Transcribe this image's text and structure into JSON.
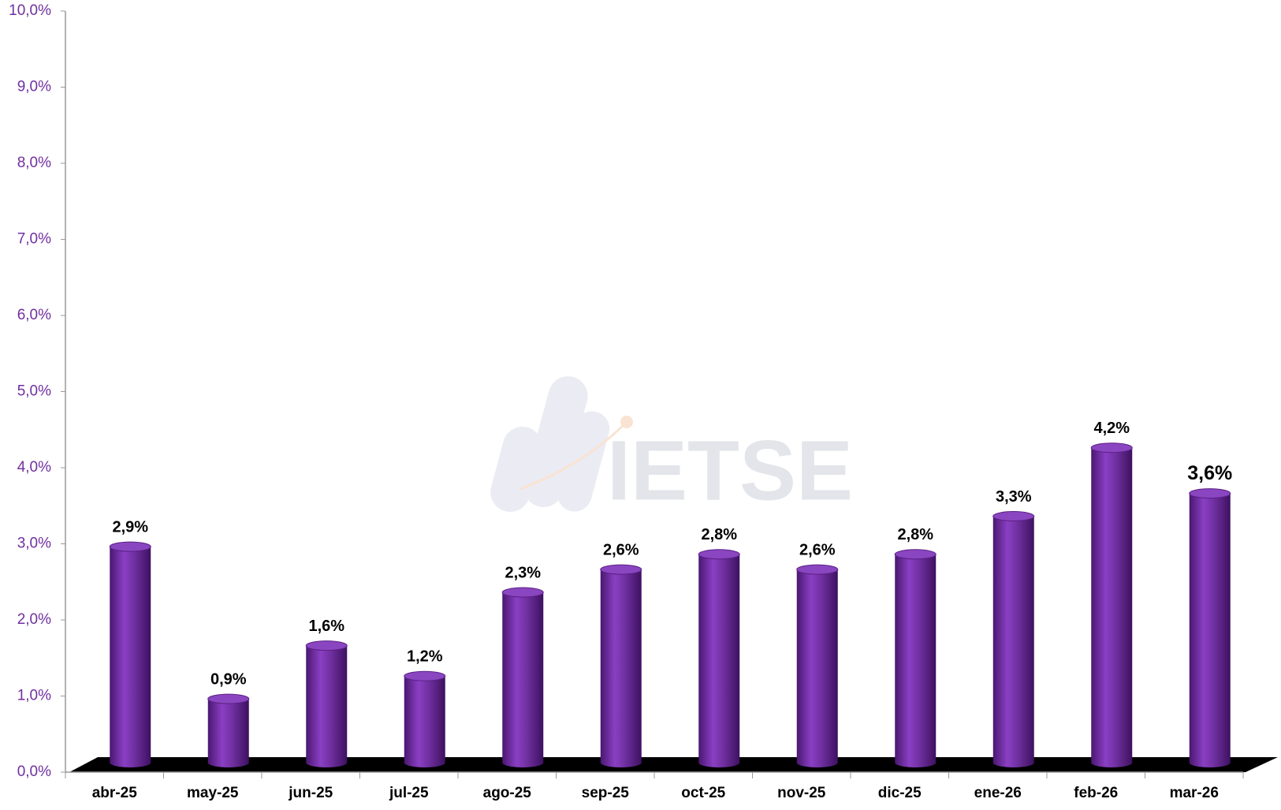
{
  "chart_data": {
    "type": "bar",
    "watermark": "IETSE",
    "categories": [
      "abr-25",
      "may-25",
      "jun-25",
      "jul-25",
      "ago-25",
      "sep-25",
      "oct-25",
      "nov-25",
      "dic-25",
      "ene-26",
      "feb-26",
      "mar-26"
    ],
    "values": [
      2.9,
      0.9,
      1.6,
      1.2,
      2.3,
      2.6,
      2.8,
      2.6,
      2.8,
      3.3,
      4.2,
      3.6
    ],
    "value_labels": [
      "2,9%",
      "0,9%",
      "1,6%",
      "1,2%",
      "2,3%",
      "2,6%",
      "2,8%",
      "2,6%",
      "2,8%",
      "3,3%",
      "4,2%",
      "3,6%"
    ],
    "color": "#7030a0",
    "ylim": [
      0,
      10
    ],
    "yticks": [
      {
        "value": 0,
        "label": "0,0%"
      },
      {
        "value": 1,
        "label": "1,0%"
      },
      {
        "value": 2,
        "label": "2,0%"
      },
      {
        "value": 3,
        "label": "3,0%"
      },
      {
        "value": 4,
        "label": "4,0%"
      },
      {
        "value": 5,
        "label": "5,0%"
      },
      {
        "value": 6,
        "label": "6,0%"
      },
      {
        "value": 7,
        "label": "7,0%"
      },
      {
        "value": 8,
        "label": "8,0%"
      },
      {
        "value": 9,
        "label": "9,0%"
      },
      {
        "value": 10,
        "label": "10,0%"
      }
    ],
    "grid": false
  }
}
